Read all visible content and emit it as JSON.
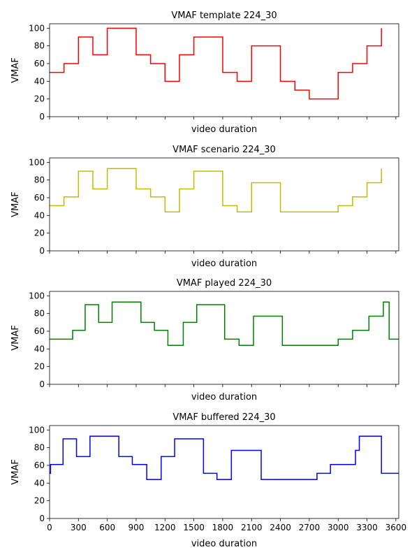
{
  "chart_data": [
    {
      "type": "line",
      "title": "VMAF template 224_30",
      "xlabel": "video duration",
      "ylabel": "VMAF",
      "xlim": [
        0,
        3630
      ],
      "ylim": [
        0,
        105
      ],
      "yticks": [
        0,
        20,
        40,
        60,
        80,
        100
      ],
      "xticks": [
        0,
        300,
        600,
        900,
        1200,
        1500,
        1800,
        2100,
        2400,
        2700,
        3000,
        3300,
        3600
      ],
      "show_xtick_labels": false,
      "series": [
        {
          "color": "#ff0000",
          "step": true,
          "x": [
            0,
            150,
            300,
            450,
            600,
            900,
            1050,
            1200,
            1350,
            1500,
            1800,
            1950,
            2100,
            2400,
            2550,
            2700,
            3000,
            3150,
            3300,
            3450,
            3450
          ],
          "y": [
            50,
            60,
            90,
            70,
            100,
            70,
            60,
            40,
            70,
            90,
            50,
            40,
            80,
            40,
            30,
            20,
            50,
            60,
            80,
            100,
            100
          ]
        }
      ]
    },
    {
      "type": "line",
      "title": "VMAF scenario 224_30",
      "xlabel": "video duration",
      "ylabel": "VMAF",
      "xlim": [
        0,
        3630
      ],
      "ylim": [
        0,
        105
      ],
      "yticks": [
        0,
        20,
        40,
        60,
        80,
        100
      ],
      "xticks": [
        0,
        300,
        600,
        900,
        1200,
        1500,
        1800,
        2100,
        2400,
        2700,
        3000,
        3300,
        3600
      ],
      "show_xtick_labels": false,
      "series": [
        {
          "color": "#bfbf00",
          "step": true,
          "x": [
            0,
            150,
            300,
            450,
            600,
            900,
            1050,
            1200,
            1350,
            1500,
            1800,
            1950,
            2100,
            2400,
            3000,
            3150,
            3300,
            3450,
            3450
          ],
          "y": [
            51,
            61,
            90,
            70,
            93,
            70,
            61,
            44,
            70,
            90,
            51,
            44,
            77,
            44,
            51,
            61,
            77,
            93,
            93
          ]
        }
      ]
    },
    {
      "type": "line",
      "title": "VMAF played 224_30",
      "xlabel": "video duration",
      "ylabel": "VMAF",
      "xlim": [
        0,
        3630
      ],
      "ylim": [
        0,
        105
      ],
      "yticks": [
        0,
        20,
        40,
        60,
        80,
        100
      ],
      "xticks": [
        0,
        300,
        600,
        900,
        1200,
        1500,
        1800,
        2100,
        2400,
        2700,
        3000,
        3300,
        3600
      ],
      "show_xtick_labels": false,
      "series": [
        {
          "color": "#008000",
          "step": true,
          "x": [
            0,
            240,
            370,
            510,
            650,
            950,
            1090,
            1230,
            1390,
            1530,
            1820,
            1970,
            2120,
            2420,
            3000,
            3150,
            3320,
            3470,
            3530,
            3630
          ],
          "y": [
            51,
            61,
            90,
            70,
            93,
            70,
            61,
            44,
            70,
            90,
            51,
            44,
            77,
            44,
            51,
            61,
            77,
            93,
            51,
            51
          ]
        }
      ]
    },
    {
      "type": "line",
      "title": "VMAF buffered 224_30",
      "xlabel": "video duration",
      "ylabel": "VMAF",
      "xlim": [
        0,
        3630
      ],
      "ylim": [
        0,
        105
      ],
      "yticks": [
        0,
        20,
        40,
        60,
        80,
        100
      ],
      "xticks": [
        0,
        300,
        600,
        900,
        1200,
        1500,
        1800,
        2100,
        2400,
        2700,
        3000,
        3300,
        3600
      ],
      "show_xtick_labels": true,
      "series": [
        {
          "color": "#0000ff",
          "step": true,
          "x": [
            0,
            10,
            140,
            280,
            420,
            720,
            860,
            1010,
            1160,
            1300,
            1600,
            1740,
            1890,
            2200,
            2780,
            2920,
            3180,
            3220,
            3450,
            3630
          ],
          "y": [
            51,
            61,
            90,
            70,
            93,
            70,
            61,
            44,
            70,
            90,
            51,
            44,
            77,
            44,
            51,
            61,
            77,
            93,
            51,
            51
          ]
        }
      ]
    }
  ]
}
